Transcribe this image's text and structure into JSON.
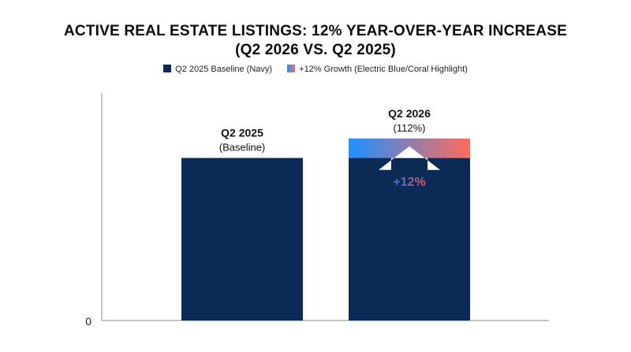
{
  "chart_data": {
    "type": "bar",
    "title_line1": "ACTIVE REAL ESTATE LISTINGS: 12% YEAR-OVER-YEAR INCREASE",
    "title_line2": "(Q2 2026 VS. Q2 2025)",
    "legend": [
      {
        "label": "Q2 2025 Baseline (Navy)",
        "color": "#0b2a55"
      },
      {
        "label": "+12% Growth (Electric Blue/Coral Highlight)",
        "colors": [
          "#1e90ff",
          "#ff6b5b"
        ]
      }
    ],
    "categories": [
      "Q2 2025",
      "Q2 2026"
    ],
    "category_sublabels": [
      "(Baseline)",
      "(112%)"
    ],
    "series": [
      {
        "name": "Q2 2025 Baseline (Navy)",
        "values": [
          100,
          100
        ],
        "color": "#0b2a55"
      },
      {
        "name": "+12% Growth (Electric Blue/Coral Highlight)",
        "values": [
          0,
          12
        ],
        "colors": [
          "#1e90ff",
          "#ff6b5b"
        ]
      }
    ],
    "growth_label": "+12%",
    "y_tick_labels": [
      "0"
    ],
    "ylim": [
      0,
      140
    ],
    "grid": false,
    "legend_position": "top"
  }
}
